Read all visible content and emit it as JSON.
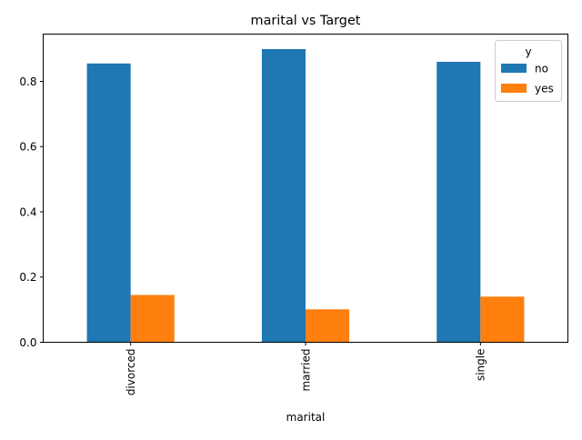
{
  "chart_data": {
    "type": "bar",
    "title": "marital vs Target",
    "xlabel": "marital",
    "ylabel": "",
    "categories": [
      "divorced",
      "married",
      "single"
    ],
    "series": [
      {
        "name": "no",
        "color": "#1f77b4",
        "values": [
          0.855,
          0.899,
          0.86
        ]
      },
      {
        "name": "yes",
        "color": "#ff7f0e",
        "values": [
          0.145,
          0.101,
          0.14
        ]
      }
    ],
    "ylim": [
      0,
      0.945
    ],
    "yticks": [
      0.0,
      0.2,
      0.4,
      0.6,
      0.8
    ],
    "ytick_labels": [
      "0.0",
      "0.2",
      "0.4",
      "0.6",
      "0.8"
    ],
    "legend": {
      "title": "y",
      "position": "top-right"
    },
    "grid": false
  }
}
